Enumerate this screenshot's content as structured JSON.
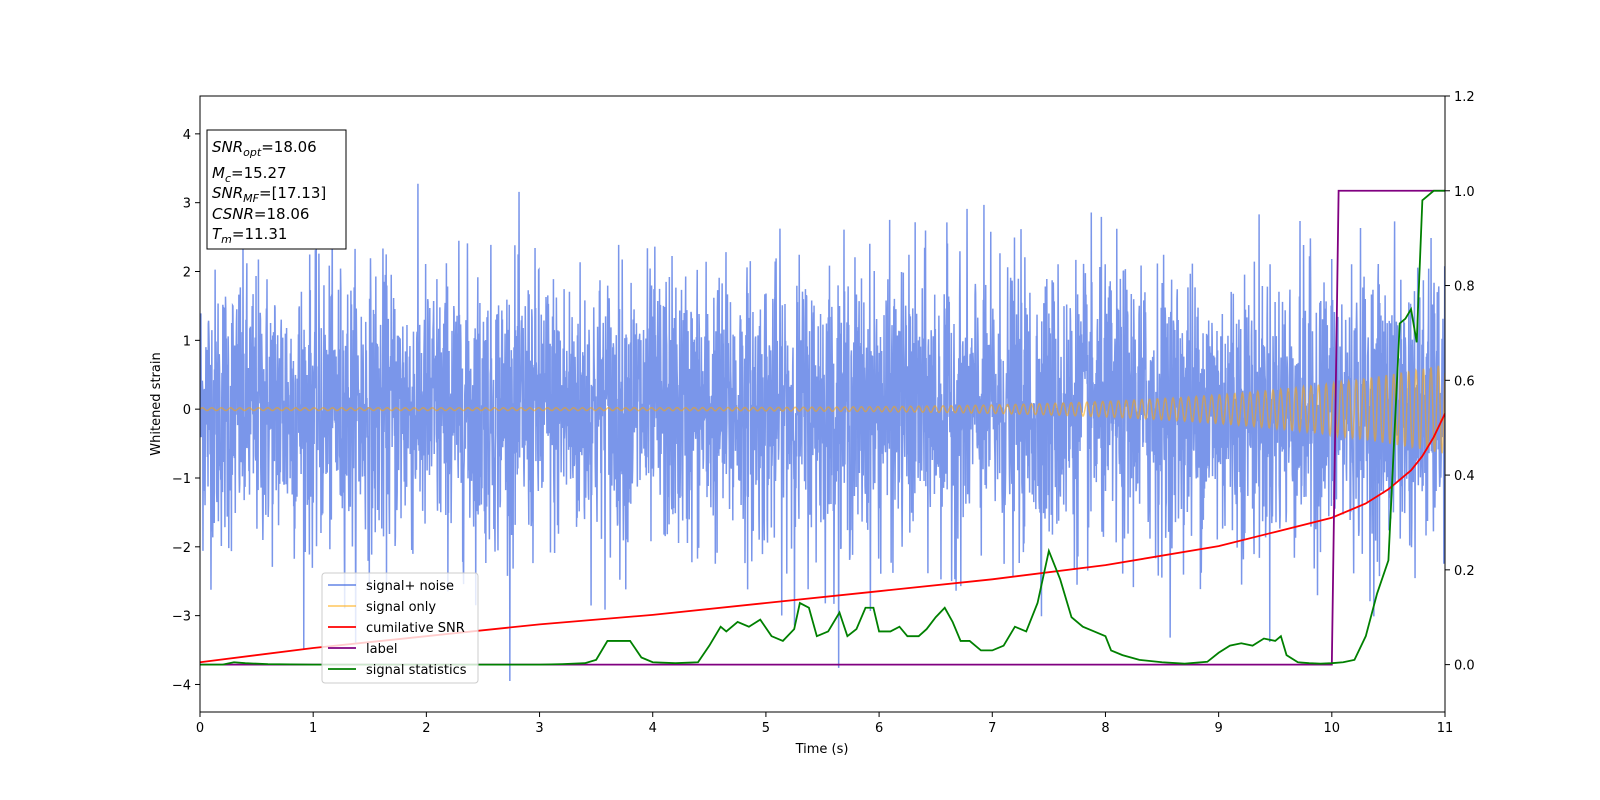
{
  "chart_data": {
    "type": "line",
    "xlabel": "Time (s)",
    "ylabel": "Whitened strain",
    "xlim": [
      0,
      11
    ],
    "ylim_left": [
      -4.4,
      4.55
    ],
    "ylim_right": [
      -0.1,
      1.2
    ],
    "xticks": [
      "0",
      "1",
      "2",
      "3",
      "4",
      "5",
      "6",
      "7",
      "8",
      "9",
      "10",
      "11"
    ],
    "yticks_left": [
      "4",
      "3",
      "2",
      "1",
      "0",
      "−1",
      "−2",
      "−3",
      "−4"
    ],
    "yticks_right": [
      "1.2",
      "1.0",
      "0.8",
      "0.6",
      "0.4",
      "0.2",
      "0.0"
    ],
    "legend_location": "lower-left",
    "grid": false,
    "info_box": {
      "lines": [
        {
          "base": "SNR",
          "sub": "opt",
          "rest": "=18.06"
        },
        {
          "base": "M",
          "sub": "c",
          "rest": "=15.27"
        },
        {
          "base": "SNR",
          "sub": "MF",
          "rest": "=[17.13]"
        },
        {
          "base": "CSNR",
          "sub": "",
          "rest": "=18.06"
        },
        {
          "base": "T",
          "sub": "m",
          "rest": "=11.31"
        }
      ]
    },
    "series": [
      {
        "name": "signal+ noise",
        "axis": "left",
        "color": "#4169e1",
        "kind": "noise",
        "noise_std": 1.0,
        "description_range": [
          -3.8,
          3.8
        ]
      },
      {
        "name": "signal only",
        "axis": "left",
        "color": "#ffa500",
        "kind": "chirp",
        "amplitude_start": 0.02,
        "amplitude_end": 0.65
      },
      {
        "name": "cumilative SNR",
        "axis": "right",
        "color": "#ff0000",
        "x": [
          0,
          1,
          2,
          3,
          4,
          5,
          6,
          7,
          8,
          9,
          9.5,
          10,
          10.3,
          10.5,
          10.7,
          10.8,
          10.9,
          11
        ],
        "y": [
          0.005,
          0.035,
          0.06,
          0.085,
          0.105,
          0.13,
          0.155,
          0.18,
          0.21,
          0.25,
          0.28,
          0.31,
          0.34,
          0.37,
          0.41,
          0.44,
          0.48,
          0.53
        ]
      },
      {
        "name": "label",
        "axis": "right",
        "color": "#800080",
        "x": [
          0,
          10.0,
          10.06,
          11
        ],
        "y": [
          0,
          0,
          1,
          1
        ]
      },
      {
        "name": "signal statistics",
        "axis": "right",
        "color": "#008000",
        "x": [
          0,
          0.2,
          0.3,
          0.4,
          0.6,
          1.0,
          1.5,
          2.0,
          2.5,
          3.0,
          3.2,
          3.4,
          3.5,
          3.6,
          3.7,
          3.8,
          3.9,
          4.0,
          4.2,
          4.4,
          4.5,
          4.6,
          4.65,
          4.75,
          4.85,
          4.95,
          5.05,
          5.15,
          5.25,
          5.3,
          5.38,
          5.45,
          5.55,
          5.65,
          5.72,
          5.8,
          5.88,
          5.95,
          6.0,
          6.1,
          6.18,
          6.25,
          6.35,
          6.42,
          6.5,
          6.58,
          6.65,
          6.72,
          6.8,
          6.9,
          7.0,
          7.1,
          7.2,
          7.3,
          7.4,
          7.5,
          7.6,
          7.7,
          7.8,
          7.9,
          8.0,
          8.05,
          8.15,
          8.3,
          8.5,
          8.7,
          8.9,
          9.0,
          9.1,
          9.2,
          9.3,
          9.4,
          9.5,
          9.55,
          9.6,
          9.7,
          9.8,
          9.9,
          10.0,
          10.1,
          10.2,
          10.3,
          10.4,
          10.5,
          10.6,
          10.65,
          10.7,
          10.75,
          10.8,
          10.85,
          10.9,
          10.95,
          11
        ],
        "y": [
          0,
          0,
          0.005,
          0.003,
          0.001,
          0,
          0,
          0,
          0,
          0,
          0.001,
          0.003,
          0.01,
          0.05,
          0.05,
          0.05,
          0.015,
          0.005,
          0.003,
          0.005,
          0.04,
          0.08,
          0.07,
          0.09,
          0.08,
          0.095,
          0.06,
          0.05,
          0.075,
          0.13,
          0.12,
          0.06,
          0.07,
          0.11,
          0.06,
          0.075,
          0.12,
          0.12,
          0.07,
          0.07,
          0.08,
          0.06,
          0.06,
          0.075,
          0.1,
          0.12,
          0.09,
          0.05,
          0.05,
          0.03,
          0.03,
          0.04,
          0.08,
          0.07,
          0.13,
          0.24,
          0.18,
          0.1,
          0.08,
          0.07,
          0.06,
          0.03,
          0.02,
          0.01,
          0.005,
          0.002,
          0.006,
          0.025,
          0.04,
          0.045,
          0.04,
          0.055,
          0.05,
          0.06,
          0.02,
          0.005,
          0.003,
          0.002,
          0.003,
          0.005,
          0.01,
          0.06,
          0.15,
          0.22,
          0.72,
          0.73,
          0.75,
          0.68,
          0.98,
          0.99,
          1.0,
          1.0,
          1.0
        ]
      }
    ]
  }
}
